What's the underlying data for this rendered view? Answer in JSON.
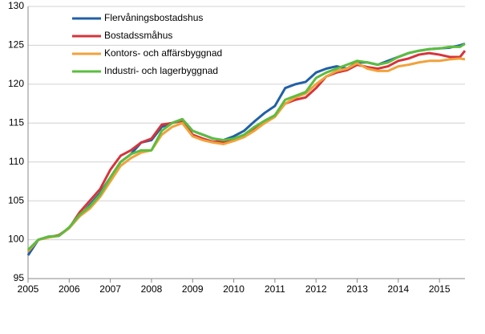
{
  "chart_data": {
    "type": "line",
    "x": [
      2005,
      2005.25,
      2005.5,
      2005.75,
      2006,
      2006.25,
      2006.5,
      2006.75,
      2007,
      2007.25,
      2007.5,
      2007.75,
      2008,
      2008.25,
      2008.5,
      2008.75,
      2009,
      2009.25,
      2009.5,
      2009.75,
      2010,
      2010.25,
      2010.5,
      2010.75,
      2011,
      2011.25,
      2011.5,
      2011.75,
      2012,
      2012.25,
      2012.5,
      2012.75,
      2013,
      2013.25,
      2013.5,
      2013.75,
      2014,
      2014.25,
      2014.5,
      2014.75,
      2015,
      2015.25,
      2015.5,
      2015.62
    ],
    "series": [
      {
        "name": "Flervåningsbostadshus",
        "color": "#2160a6",
        "values": [
          98.0,
          100,
          100.4,
          100.5,
          101.5,
          103,
          104.5,
          106,
          108,
          110,
          111,
          112.5,
          112.8,
          114.5,
          115,
          115.5,
          114,
          113.5,
          113,
          112.8,
          113.3,
          114,
          115.2,
          116.3,
          117.2,
          119.5,
          120,
          120.3,
          121.5,
          122,
          122.3,
          122,
          122.8,
          122.8,
          122.5,
          123,
          123.5,
          124,
          124.3,
          124.5,
          124.6,
          124.7,
          125,
          125.2
        ]
      },
      {
        "name": "Bostadssmåhus",
        "color": "#d6343c",
        "values": [
          98.5,
          100,
          100.3,
          100.6,
          101.5,
          103.5,
          105,
          106.5,
          109,
          110.8,
          111.5,
          112.5,
          113,
          114.8,
          115,
          115.3,
          113.5,
          113,
          112.6,
          112.6,
          112.8,
          113.2,
          114.2,
          115,
          116,
          117.5,
          118,
          118.3,
          119.5,
          121,
          121.5,
          121.8,
          122.5,
          122.2,
          122,
          122.3,
          123,
          123.3,
          123.8,
          124,
          123.8,
          123.5,
          123.5,
          124.3
        ]
      },
      {
        "name": "Kontors- och affärsbyggnad",
        "color": "#f0a23c",
        "values": [
          98.5,
          100,
          100.3,
          100.5,
          101.5,
          103,
          104,
          105.5,
          107.5,
          109.5,
          110.5,
          111.2,
          111.5,
          113.5,
          114.5,
          115,
          113.3,
          112.8,
          112.5,
          112.3,
          112.7,
          113.2,
          114,
          115,
          115.8,
          117.5,
          118.3,
          118.8,
          120,
          121,
          121.7,
          122,
          122.7,
          122,
          121.7,
          121.7,
          122.3,
          122.5,
          122.8,
          123,
          123,
          123.2,
          123.3,
          123.2
        ]
      },
      {
        "name": "Industri- och lagerbyggnad",
        "color": "#5cbd3e",
        "values": [
          98.7,
          100,
          100.4,
          100.5,
          101.6,
          103.2,
          104.3,
          105.8,
          108,
          110,
          111,
          111.5,
          111.5,
          114,
          115,
          115.5,
          114,
          113.5,
          113,
          112.8,
          113,
          113.5,
          114.5,
          115.3,
          116,
          118,
          118.5,
          119,
          120.8,
          121.5,
          122,
          122.5,
          123,
          122.8,
          122.5,
          122.8,
          123.5,
          124,
          124.3,
          124.5,
          124.6,
          124.8,
          124.8,
          125.2
        ]
      }
    ],
    "xlim": [
      2005,
      2015.62
    ],
    "xticks": [
      2005,
      2006,
      2007,
      2008,
      2009,
      2010,
      2011,
      2012,
      2013,
      2014,
      2015
    ],
    "ylim": [
      95,
      130
    ],
    "yticks": [
      95,
      100,
      105,
      110,
      115,
      120,
      125,
      130
    ],
    "grid": true
  }
}
